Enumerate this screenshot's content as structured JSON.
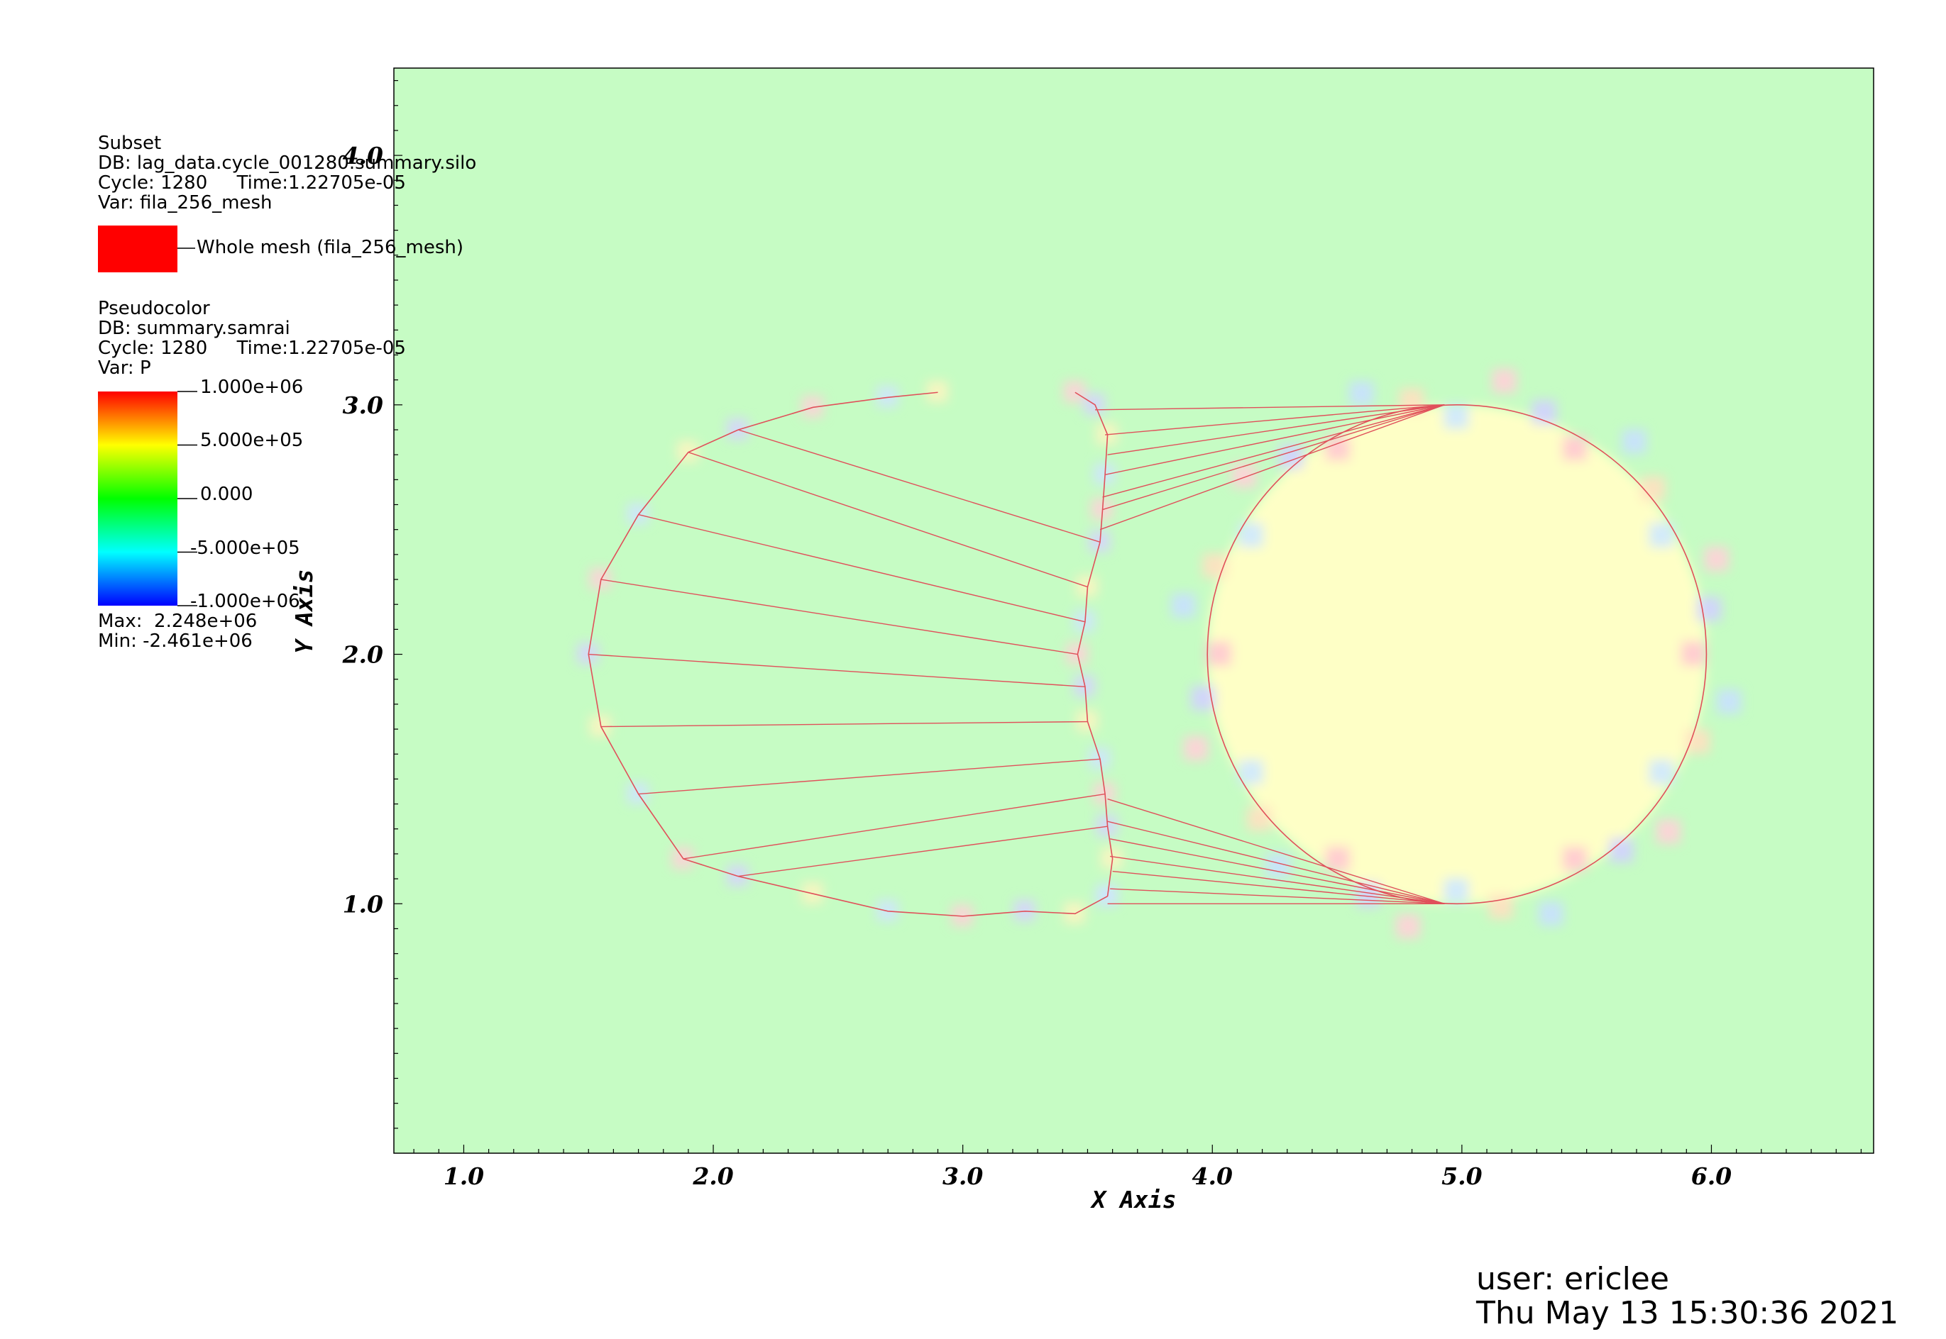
{
  "chart_data": {
    "type": "heatmap",
    "xlabel": "X Axis",
    "ylabel": "Y Axis",
    "xlim": [
      0.72,
      6.65
    ],
    "ylim": [
      0.0,
      4.35
    ],
    "x_ticks": [
      "1.0",
      "2.0",
      "3.0",
      "4.0",
      "5.0",
      "6.0"
    ],
    "y_ticks": [
      "1.0",
      "2.0",
      "3.0",
      "4.0"
    ],
    "x_tick_values": [
      1.0,
      2.0,
      3.0,
      4.0,
      5.0,
      6.0
    ],
    "y_tick_values": [
      1.0,
      2.0,
      3.0,
      4.0
    ],
    "background_color": "#c6fcc4",
    "mesh_color": "#e0505a",
    "left_shape": {
      "outline": [
        [
          2.9,
          3.05
        ],
        [
          2.7,
          3.03
        ],
        [
          2.4,
          2.99
        ],
        [
          2.1,
          2.9
        ],
        [
          1.9,
          2.81
        ],
        [
          1.7,
          2.56
        ],
        [
          1.55,
          2.3
        ],
        [
          1.5,
          2.0
        ],
        [
          1.55,
          1.71
        ],
        [
          1.7,
          1.44
        ],
        [
          1.88,
          1.18
        ],
        [
          2.1,
          1.11
        ],
        [
          2.4,
          1.04
        ],
        [
          2.7,
          0.97
        ],
        [
          3.0,
          0.95
        ],
        [
          3.25,
          0.97
        ],
        [
          3.45,
          0.96
        ],
        [
          3.58,
          1.03
        ]
      ],
      "front": [
        [
          3.45,
          3.05
        ],
        [
          3.53,
          3.0
        ],
        [
          3.58,
          2.88
        ],
        [
          3.57,
          2.72
        ],
        [
          3.56,
          2.58
        ],
        [
          3.55,
          2.45
        ],
        [
          3.5,
          2.27
        ],
        [
          3.49,
          2.13
        ],
        [
          3.46,
          2.0
        ],
        [
          3.49,
          1.87
        ],
        [
          3.5,
          1.73
        ],
        [
          3.55,
          1.58
        ],
        [
          3.57,
          1.44
        ],
        [
          3.58,
          1.31
        ],
        [
          3.6,
          1.18
        ],
        [
          3.58,
          1.03
        ]
      ],
      "fan_center": [
        3.5,
        2.0
      ],
      "fan_outer": [
        [
          2.1,
          2.9
        ],
        [
          1.9,
          2.81
        ],
        [
          1.7,
          2.56
        ],
        [
          1.55,
          2.3
        ],
        [
          1.5,
          2.0
        ],
        [
          1.55,
          1.71
        ],
        [
          1.7,
          1.44
        ],
        [
          1.88,
          1.18
        ],
        [
          2.1,
          1.11
        ]
      ],
      "fan_inner": [
        [
          3.55,
          2.45
        ],
        [
          3.5,
          2.27
        ],
        [
          3.49,
          2.13
        ],
        [
          3.46,
          2.0
        ],
        [
          3.49,
          1.87
        ],
        [
          3.5,
          1.73
        ],
        [
          3.55,
          1.58
        ],
        [
          3.57,
          1.44
        ],
        [
          3.58,
          1.31
        ]
      ]
    },
    "circle": {
      "cx": 4.98,
      "cy": 2.0,
      "r": 1.0
    },
    "bridge_top": {
      "apex": [
        4.93,
        3.0
      ],
      "from": [
        [
          3.53,
          2.98
        ],
        [
          3.57,
          2.88
        ],
        [
          3.58,
          2.8
        ],
        [
          3.57,
          2.72
        ],
        [
          3.56,
          2.63
        ],
        [
          3.56,
          2.58
        ],
        [
          3.55,
          2.5
        ]
      ]
    },
    "bridge_bottom": {
      "apex": [
        4.93,
        1.0
      ],
      "from": [
        [
          3.58,
          1.42
        ],
        [
          3.58,
          1.33
        ],
        [
          3.59,
          1.26
        ],
        [
          3.59,
          1.19
        ],
        [
          3.6,
          1.13
        ],
        [
          3.59,
          1.06
        ],
        [
          3.58,
          1.0
        ]
      ]
    }
  },
  "legend_subset": {
    "title": "Subset",
    "db": "DB: lag_data.cycle_001280.summary.silo",
    "cycle": "Cycle: 1280     Time:1.22705e-05",
    "var": "Var: fila_256_mesh",
    "swatch_label": "Whole mesh (fila_256_mesh)",
    "swatch_color": "#ff0000"
  },
  "legend_pseudocolor": {
    "title": "Pseudocolor",
    "db": "DB: summary.samrai",
    "cycle": "Cycle: 1280     Time:1.22705e-05",
    "var": "Var: P",
    "bar_labels": [
      "1.000e+06",
      "5.000e+05",
      "0.000",
      "-5.000e+05",
      "-1.000e+06"
    ],
    "max": "Max:  2.248e+06",
    "min": "Min: -2.461e+06"
  },
  "footer": {
    "user": "user: ericlee",
    "timestamp": "Thu May 13 15:30:36 2021"
  }
}
